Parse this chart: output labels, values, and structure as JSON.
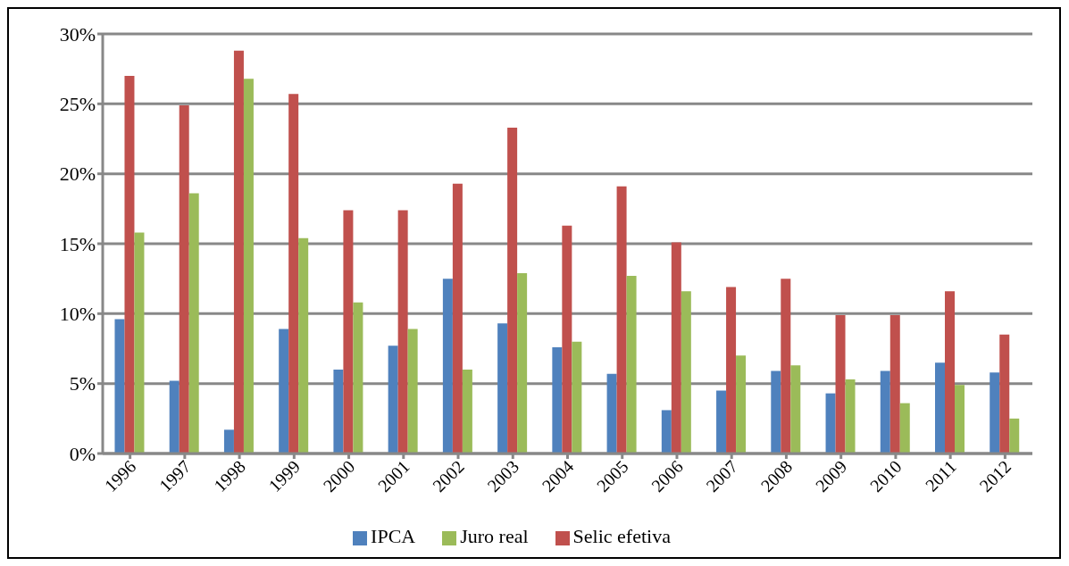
{
  "chart_data": {
    "type": "bar",
    "categories": [
      "1996",
      "1997",
      "1998",
      "1999",
      "2000",
      "2001",
      "2002",
      "2003",
      "2004",
      "2005",
      "2006",
      "2007",
      "2008",
      "2009",
      "2010",
      "2011",
      "2012"
    ],
    "series": [
      {
        "name": "IPCA",
        "color": "#4f81bd",
        "values": [
          9.6,
          5.2,
          1.7,
          8.9,
          6.0,
          7.7,
          12.5,
          9.3,
          7.6,
          5.7,
          3.1,
          4.5,
          5.9,
          4.3,
          5.9,
          6.5,
          5.8
        ]
      },
      {
        "name": "Selic efetiva",
        "color": "#c0504d",
        "values": [
          27.0,
          24.9,
          28.8,
          25.7,
          17.4,
          17.4,
          19.3,
          23.3,
          16.3,
          19.1,
          15.1,
          11.9,
          12.5,
          9.9,
          9.9,
          11.6,
          8.5
        ]
      },
      {
        "name": "Juro real",
        "color": "#9bbb59",
        "values": [
          15.8,
          18.6,
          26.8,
          15.4,
          10.8,
          8.9,
          6.0,
          12.9,
          8.0,
          12.7,
          11.6,
          7.0,
          6.3,
          5.3,
          3.6,
          4.9,
          2.5
        ]
      }
    ],
    "ylim": [
      0,
      30
    ],
    "yticks": [
      {
        "value": 0,
        "label": "0%"
      },
      {
        "value": 5,
        "label": "5%"
      },
      {
        "value": 10,
        "label": "10%"
      },
      {
        "value": 15,
        "label": "15%"
      },
      {
        "value": 20,
        "label": "20%"
      },
      {
        "value": 25,
        "label": "25%"
      },
      {
        "value": 30,
        "label": "30%"
      }
    ],
    "grid": "y",
    "legend": "bottom"
  }
}
